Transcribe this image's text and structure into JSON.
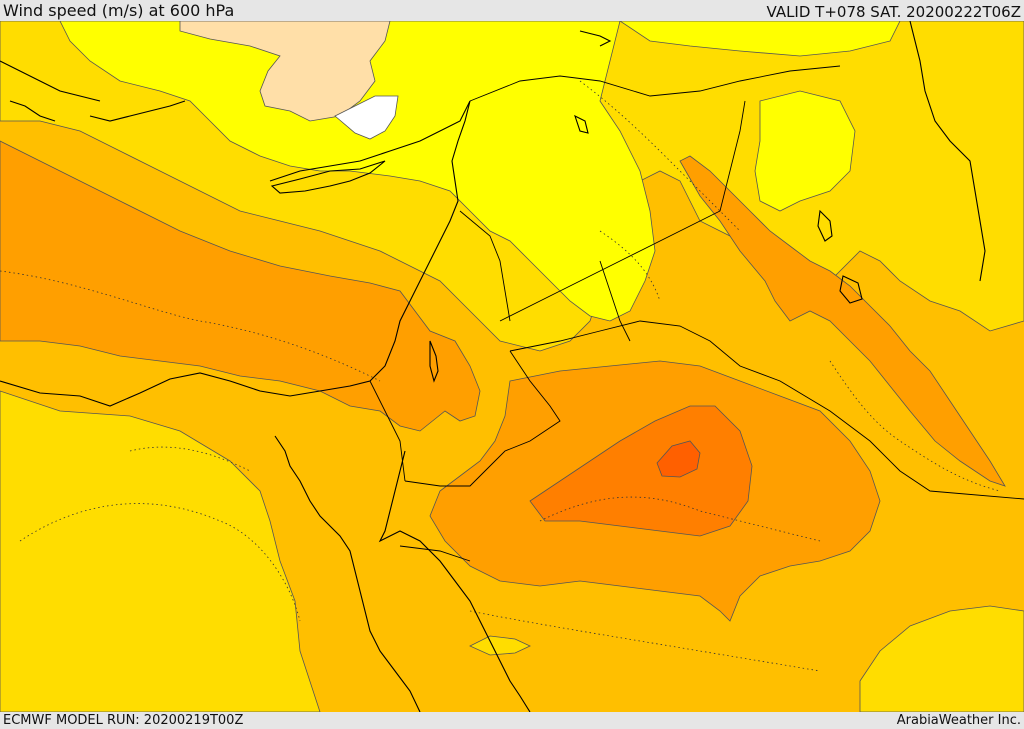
{
  "header": {
    "title": "Wind speed (m/s) at 600 hPa",
    "valid": "VALID T+078 SAT. 20200222T06Z"
  },
  "footer": {
    "model_run": "ECMWF MODEL RUN: 20200219T00Z",
    "credit": "ArabiaWeather Inc."
  },
  "map": {
    "region": "Eastern Mediterranean and Middle East",
    "field": "wind speed",
    "colors": {
      "very_low": "#ffffff",
      "low": "#ffdfa8",
      "light_yellow": "#ffff00",
      "yellow": "#ffdd00",
      "orange_light": "#ffbf00",
      "orange": "#ff9f00",
      "orange_dark": "#ff7f00",
      "red_orange": "#ff6000",
      "coast": "#000000",
      "contour": "#444444"
    }
  }
}
